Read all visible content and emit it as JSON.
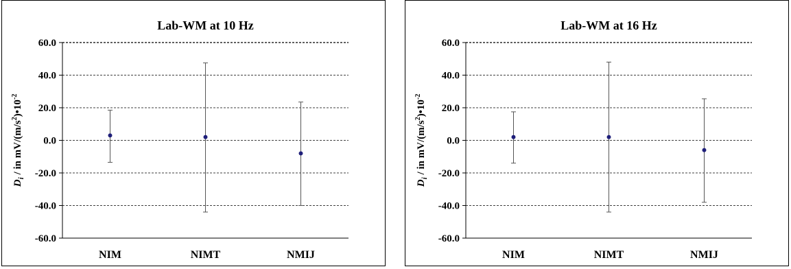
{
  "chart_data": [
    {
      "type": "scatter",
      "title": "Lab-WM at 10 Hz",
      "ylabel_main": "D",
      "ylabel_sub": "i",
      "ylabel_rest1": " / in mV/(m/s",
      "ylabel_sup1": "2",
      "ylabel_rest2": ")•10",
      "ylabel_sup2": "-2",
      "ylim": [
        -60,
        60
      ],
      "yticks": [
        "60.0",
        "40.0",
        "20.0",
        "0.0",
        "-20.0",
        "-40.0",
        "-60.0"
      ],
      "ytick_values": [
        60,
        40,
        20,
        0,
        -20,
        -40,
        -60
      ],
      "grid": true,
      "categories": [
        "NIM",
        "NIMT",
        "NMIJ"
      ],
      "values": [
        3.0,
        2.0,
        -8.0
      ],
      "error_high": [
        18.5,
        47.5,
        23.5
      ],
      "error_low": [
        -13.5,
        -44.0,
        -40.0
      ],
      "point_color": "#1f1f7a"
    },
    {
      "type": "scatter",
      "title": "Lab-WM at 16 Hz",
      "ylabel_main": "D",
      "ylabel_sub": "i",
      "ylabel_rest1": " / in mV/(m/s",
      "ylabel_sup1": "2",
      "ylabel_rest2": ")•10",
      "ylabel_sup2": "-2",
      "ylim": [
        -60,
        60
      ],
      "yticks": [
        "60.0",
        "40.0",
        "20.0",
        "0.0",
        "-20.0",
        "-40.0",
        "-60.0"
      ],
      "ytick_values": [
        60,
        40,
        20,
        0,
        -20,
        -40,
        -60
      ],
      "grid": true,
      "categories": [
        "NIM",
        "NIMT",
        "NMIJ"
      ],
      "values": [
        2.0,
        2.0,
        -6.0
      ],
      "error_high": [
        17.5,
        48.0,
        25.5
      ],
      "error_low": [
        -14.0,
        -44.0,
        -38.0
      ],
      "point_color": "#1f1f7a"
    }
  ]
}
